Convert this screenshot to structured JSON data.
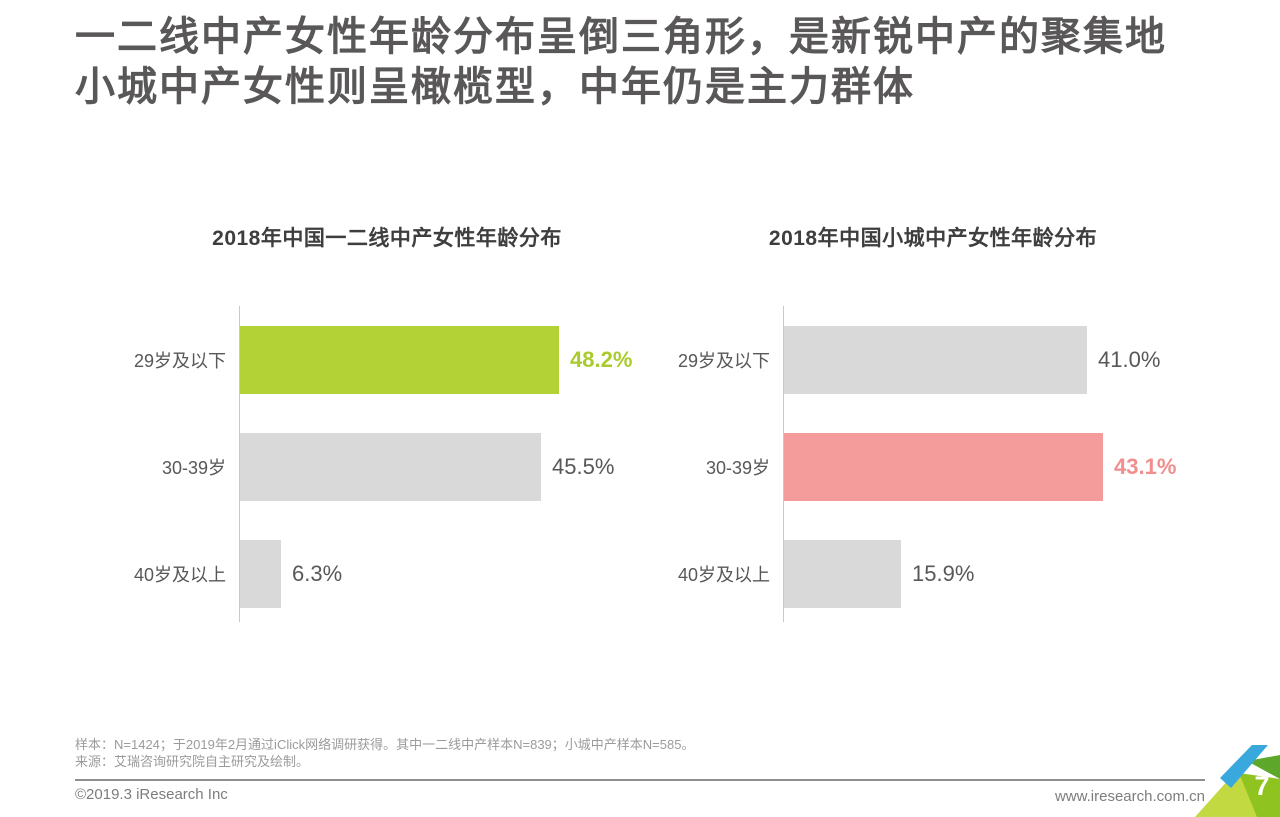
{
  "page": {
    "title_line1": "一二线中产女性年龄分布呈倒三角形，是新锐中产的聚集地",
    "title_line2": "小城中产女性则呈橄榄型，中年仍是主力群体"
  },
  "chart_data": [
    {
      "type": "bar",
      "orientation": "horizontal",
      "title": "2018年中国一二线中产女性年龄分布",
      "categories": [
        "29岁及以下",
        "30-39岁",
        "40岁及以上"
      ],
      "values": [
        48.2,
        45.5,
        6.3
      ],
      "value_labels": [
        "48.2%",
        "45.5%",
        "6.3%"
      ],
      "highlight_index": 0,
      "bar_color_default": "#d9d9d9",
      "bar_color_highlight": "#b2d235",
      "label_color_default": "#595757",
      "label_color_highlight": "#a9cb2d",
      "axis_color": "#c8c8c8",
      "xlim": [
        0,
        50
      ],
      "grid": false,
      "legend": false
    },
    {
      "type": "bar",
      "orientation": "horizontal",
      "title": "2018年中国小城中产女性年龄分布",
      "categories": [
        "29岁及以下",
        "30-39岁",
        "40岁及以上"
      ],
      "values": [
        41.0,
        43.1,
        15.9
      ],
      "value_labels": [
        "41.0%",
        "43.1%",
        "15.9%"
      ],
      "highlight_index": 1,
      "bar_color_default": "#d9d9d9",
      "bar_color_highlight": "#f49b9b",
      "label_color_default": "#595757",
      "label_color_highlight": "#f18e8e",
      "axis_color": "#c8c8c8",
      "xlim": [
        0,
        45
      ],
      "grid": false,
      "legend": false
    }
  ],
  "footer": {
    "note_line1": "样本：N=1424；于2019年2月通过iClick网络调研获得。其中一二线中产样本N=839；小城中产样本N=585。",
    "note_line2": "来源：艾瑞咨询研究院自主研究及绘制。",
    "copyright": "©2019.3 iResearch Inc",
    "website": "www.iresearch.com.cn",
    "page_number": "7"
  },
  "logo_colors": {
    "blue": "#38a8dd",
    "dark_green": "#5da82a",
    "mid_green": "#8fc31f",
    "light_green": "#c3d941"
  }
}
